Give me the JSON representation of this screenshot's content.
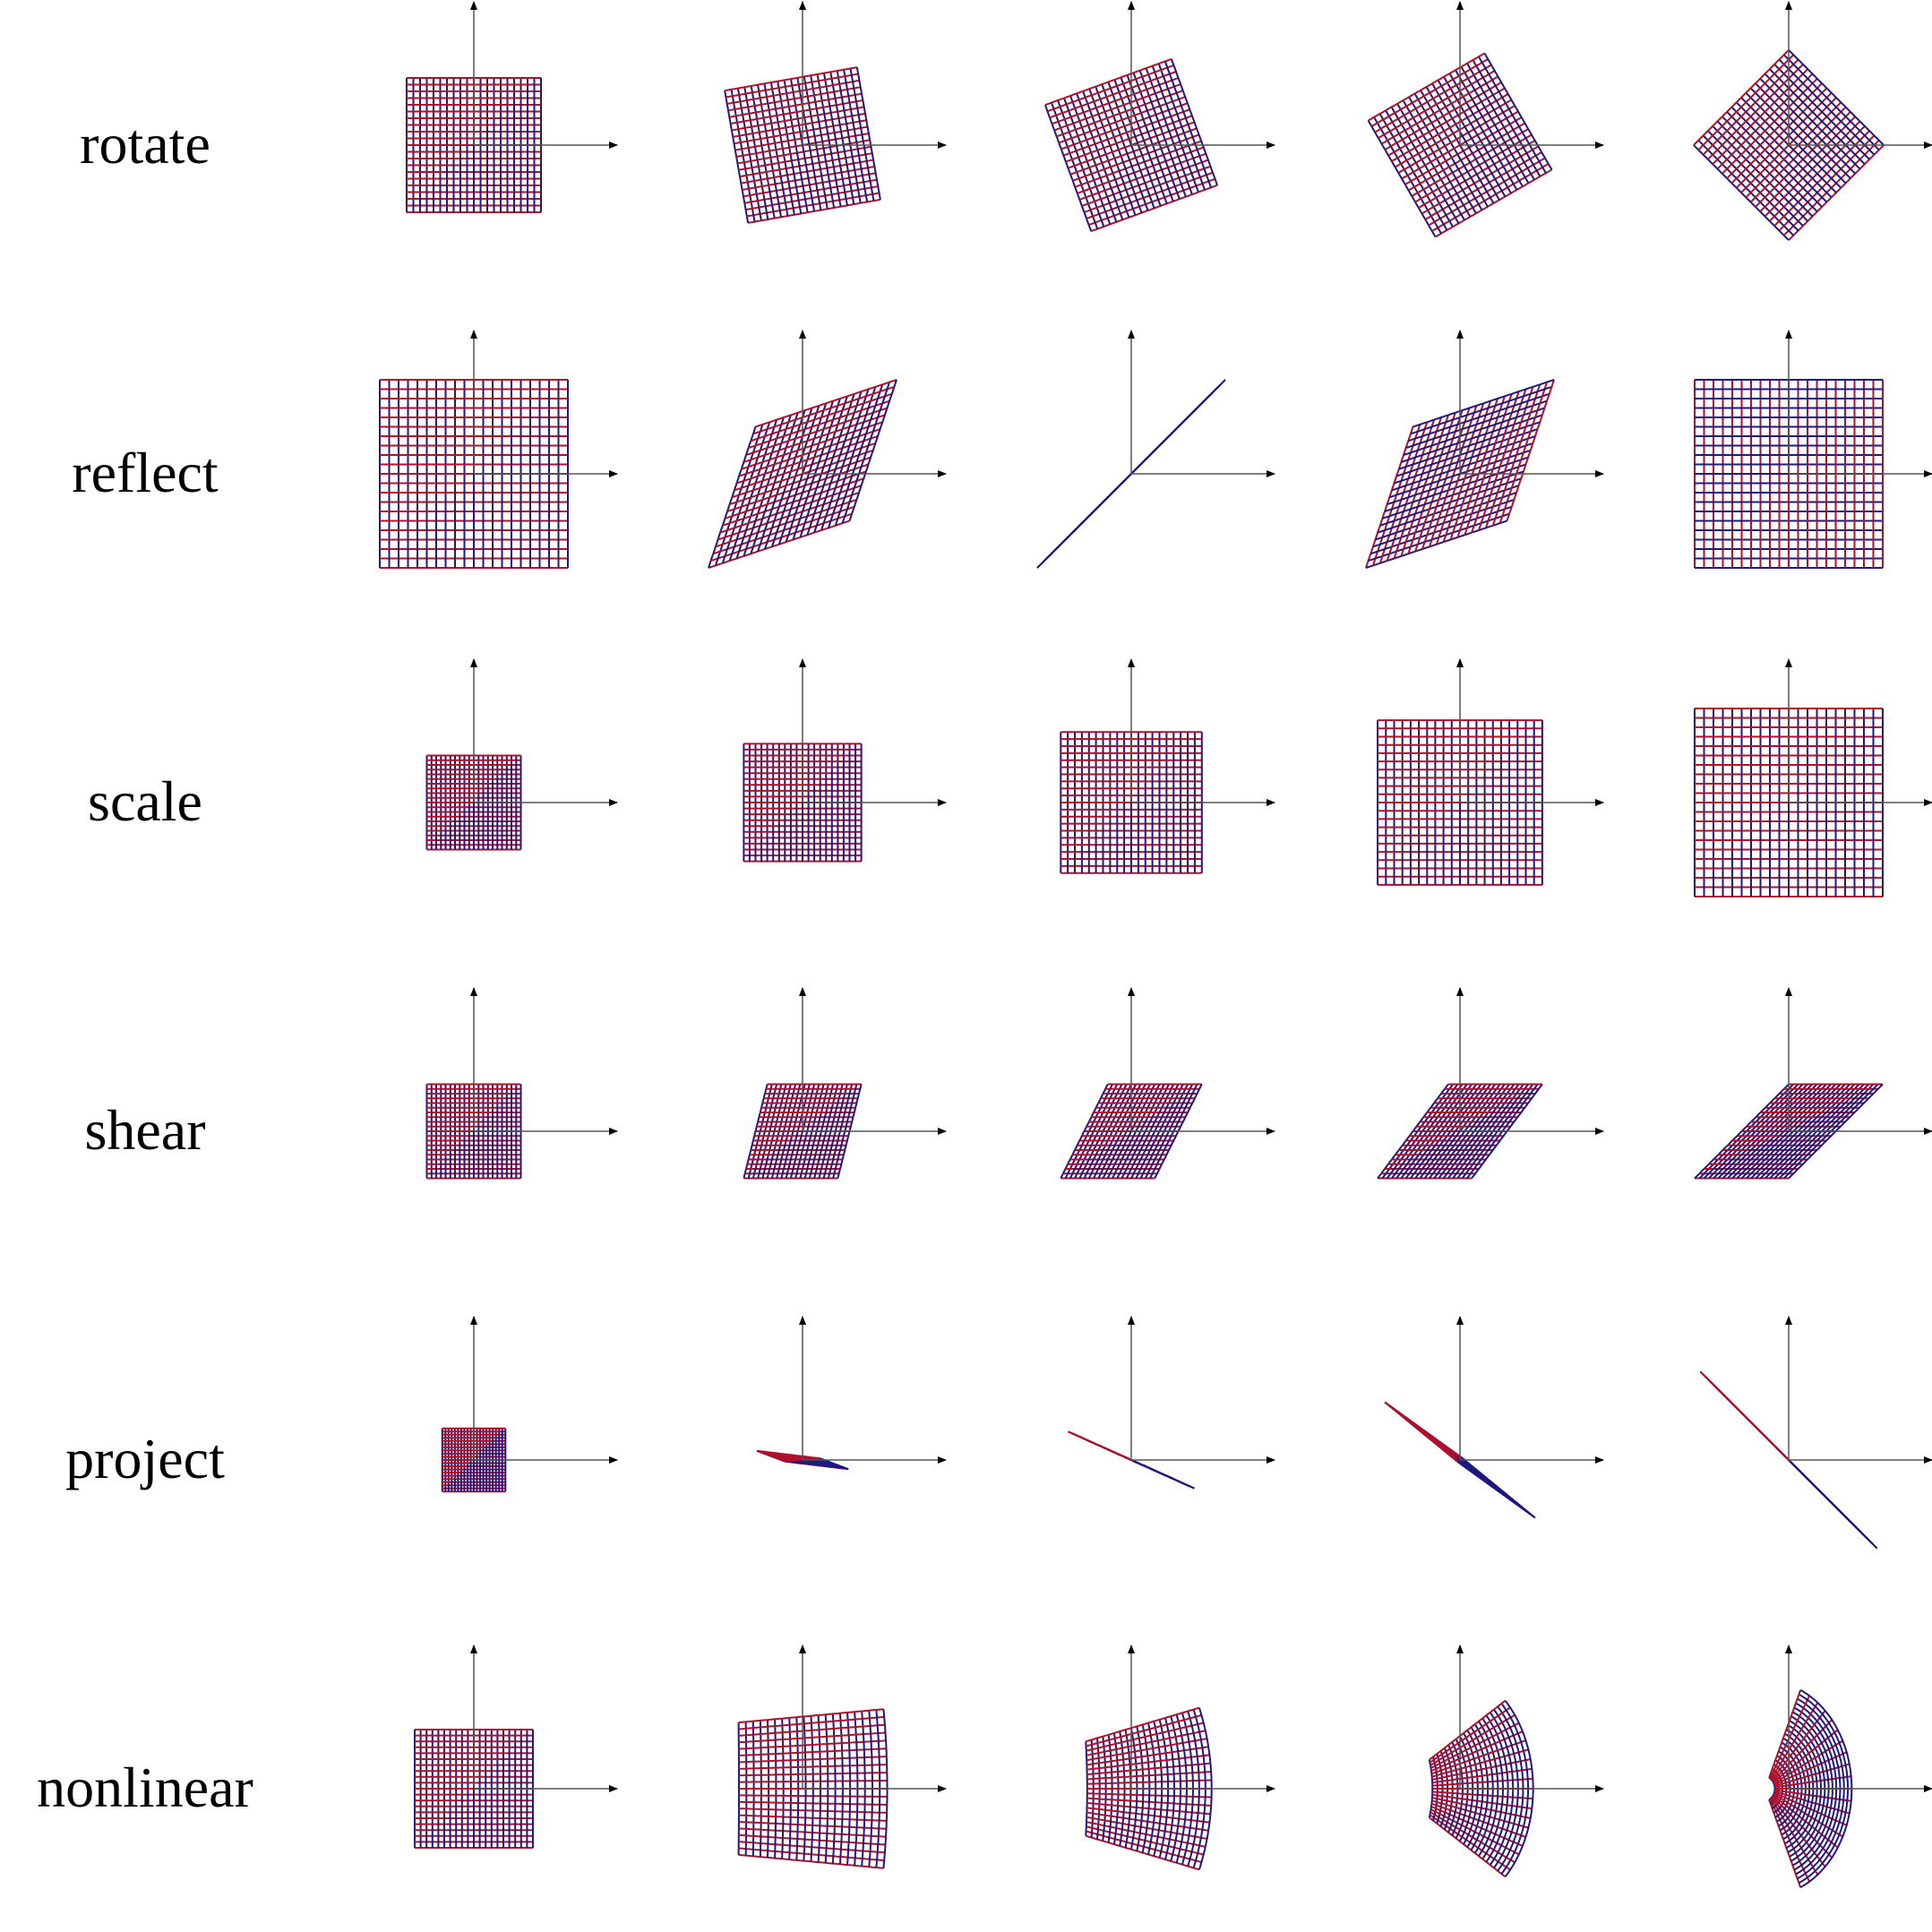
{
  "figure": {
    "row_labels": [
      "rotate",
      "reflect",
      "scale",
      "shear",
      "project",
      "nonlinear"
    ],
    "columns": 5,
    "grid_divisions": 20,
    "colors": {
      "axis": "#555555",
      "grid_horizontal": "#b0102a",
      "grid_vertical": "#1a1a80",
      "filled": "#3a0f4a",
      "background": "#ffffff"
    },
    "rows": [
      {
        "name": "rotate",
        "transforms": [
          {
            "type": "linear",
            "matrix": [
              [
                1,
                0
              ],
              [
                0,
                1
              ]
            ],
            "scale": 1.0
          },
          {
            "type": "linear",
            "matrix": [
              [
                0.9848,
                -0.1736
              ],
              [
                0.1736,
                0.9848
              ]
            ],
            "scale": 1.0
          },
          {
            "type": "linear",
            "matrix": [
              [
                0.9397,
                -0.342
              ],
              [
                0.342,
                0.9397
              ]
            ],
            "scale": 1.0
          },
          {
            "type": "linear",
            "matrix": [
              [
                0.866,
                -0.5
              ],
              [
                0.5,
                0.866
              ]
            ],
            "scale": 1.0
          },
          {
            "type": "linear",
            "matrix": [
              [
                0.7071,
                -0.7071
              ],
              [
                0.7071,
                0.7071
              ]
            ],
            "scale": 1.0
          }
        ]
      },
      {
        "name": "reflect",
        "transforms": [
          {
            "type": "linear",
            "matrix": [
              [
                1,
                0
              ],
              [
                0,
                1
              ]
            ],
            "scale": 1.4
          },
          {
            "type": "linear",
            "matrix": [
              [
                0.75,
                0.25
              ],
              [
                0.25,
                0.75
              ]
            ],
            "scale": 1.4
          },
          {
            "type": "linear",
            "matrix": [
              [
                0.5,
                0.5
              ],
              [
                0.5,
                0.5
              ]
            ],
            "scale": 1.4
          },
          {
            "type": "linear",
            "matrix": [
              [
                0.25,
                0.75
              ],
              [
                0.75,
                0.25
              ]
            ],
            "scale": 1.4
          },
          {
            "type": "linear",
            "matrix": [
              [
                0,
                1
              ],
              [
                1,
                0
              ]
            ],
            "scale": 1.4
          }
        ]
      },
      {
        "name": "scale",
        "transforms": [
          {
            "type": "linear",
            "matrix": [
              [
                1,
                0
              ],
              [
                0,
                1
              ]
            ],
            "scale": 0.7
          },
          {
            "type": "linear",
            "matrix": [
              [
                1,
                0
              ],
              [
                0,
                1
              ]
            ],
            "scale": 0.875
          },
          {
            "type": "linear",
            "matrix": [
              [
                1,
                0
              ],
              [
                0,
                1
              ]
            ],
            "scale": 1.05
          },
          {
            "type": "linear",
            "matrix": [
              [
                1,
                0
              ],
              [
                0,
                1
              ]
            ],
            "scale": 1.225
          },
          {
            "type": "linear",
            "matrix": [
              [
                1,
                0
              ],
              [
                0,
                1
              ]
            ],
            "scale": 1.4
          }
        ]
      },
      {
        "name": "shear",
        "transforms": [
          {
            "type": "linear",
            "matrix": [
              [
                1,
                0
              ],
              [
                0,
                1
              ]
            ],
            "scale": 0.7
          },
          {
            "type": "linear",
            "matrix": [
              [
                1,
                0.25
              ],
              [
                0,
                1
              ]
            ],
            "scale": 0.7
          },
          {
            "type": "linear",
            "matrix": [
              [
                1,
                0.5
              ],
              [
                0,
                1
              ]
            ],
            "scale": 0.7
          },
          {
            "type": "linear",
            "matrix": [
              [
                1,
                0.75
              ],
              [
                0,
                1
              ]
            ],
            "scale": 0.7
          },
          {
            "type": "linear",
            "matrix": [
              [
                1,
                1
              ],
              [
                0,
                1
              ]
            ],
            "scale": 0.7
          }
        ]
      },
      {
        "name": "project",
        "transforms": [
          {
            "type": "linear",
            "matrix": [
              [
                1,
                0
              ],
              [
                0,
                1
              ]
            ],
            "scale": 0.47
          },
          {
            "type": "linear",
            "matrix": [
              [
                1,
                -0.45
              ],
              [
                -0.12,
                0.17
              ]
            ],
            "scale": 0.47
          },
          {
            "type": "linear",
            "matrix": [
              [
                1,
                -1
              ],
              [
                -0.45,
                0.45
              ]
            ],
            "scale": 0.47
          },
          {
            "type": "linear",
            "matrix": [
              [
                1.16,
                -1.22
              ],
              [
                -0.95,
                0.88
              ]
            ],
            "scale": 0.47
          },
          {
            "type": "linear",
            "matrix": [
              [
                1.4,
                -1.4
              ],
              [
                -1.4,
                1.4
              ]
            ],
            "scale": 0.47
          }
        ]
      },
      {
        "name": "nonlinear",
        "transforms": [
          {
            "type": "linear",
            "matrix": [
              [
                1,
                0
              ],
              [
                0,
                1
              ]
            ],
            "scale": 0.88
          },
          {
            "type": "polar",
            "t": 0.25
          },
          {
            "type": "polar",
            "t": 0.5
          },
          {
            "type": "polar",
            "t": 0.75
          },
          {
            "type": "polar",
            "t": 1.0
          }
        ]
      }
    ]
  }
}
